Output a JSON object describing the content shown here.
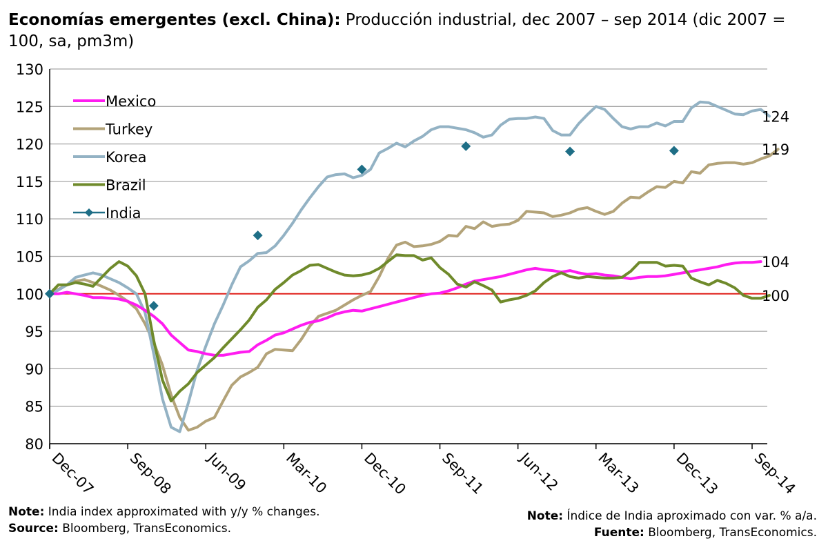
{
  "title": {
    "bold": "Economías emergentes (excl. China):",
    "rest": " Producción industrial, dec 2007 – sep 2014 (dic 2007 = 100, sa, pm3m)"
  },
  "notes": {
    "left_note_label": "Note:",
    "left_note_text": " India index approximated with y/y % changes.",
    "left_source_label": "Source:",
    "left_source_text": " Bloomberg, TransEconomics.",
    "right_note_label": "Note:",
    "right_note_text": " Índice de India aproximado con var. % a/a.",
    "right_source_label": "Fuente:",
    "right_source_text": " Bloomberg, TransEconomics."
  },
  "colors": {
    "Mexico": "#ff1cf0",
    "Turkey": "#b3a379",
    "Korea": "#93b2c4",
    "Brazil": "#6f8a2b",
    "India": "#1e6e86",
    "reference": "#e0201b",
    "grid": "#a6a6a6"
  },
  "chart_data": {
    "type": "line",
    "x_unit": "month",
    "x_start": "Dec-07",
    "x_end": "Sep-14",
    "xticks": [
      "Dec-07",
      "Sep-08",
      "Jun-09",
      "Mar-10",
      "Dec-10",
      "Sep-11",
      "Jun-12",
      "Mar-13",
      "Dec-13",
      "Sep-14"
    ],
    "yticks": [
      80,
      85,
      90,
      95,
      100,
      105,
      110,
      115,
      120,
      125,
      130
    ],
    "ylim": [
      80,
      130
    ],
    "grid": true,
    "legend_position": "top-left",
    "reference_line": 100,
    "series": [
      {
        "name": "Mexico",
        "end_label": "104",
        "values": [
          100,
          100,
          100.2,
          100,
          99.8,
          99.5,
          99.5,
          99.4,
          99.3,
          99,
          98.5,
          97.8,
          97,
          96,
          94.5,
          93.5,
          92.5,
          92.3,
          92,
          91.8,
          91.8,
          92,
          92.2,
          92.3,
          93.2,
          93.8,
          94.5,
          94.8,
          95.3,
          95.8,
          96.2,
          96.4,
          96.8,
          97.3,
          97.6,
          97.8,
          97.7,
          98,
          98.3,
          98.6,
          98.9,
          99.2,
          99.5,
          99.8,
          100,
          100.1,
          100.4,
          100.8,
          101.3,
          101.7,
          101.9,
          102.1,
          102.3,
          102.6,
          102.9,
          103.2,
          103.4,
          103.2,
          103.1,
          102.9,
          103.1,
          102.8,
          102.6,
          102.7,
          102.5,
          102.4,
          102.2,
          102,
          102.2,
          102.3,
          102.3,
          102.4,
          102.6,
          102.8,
          103,
          103.2,
          103.4,
          103.6,
          103.9,
          104.1,
          104.2,
          104.2,
          104.3
        ]
      },
      {
        "name": "Turkey",
        "end_label": "119",
        "values": [
          100,
          100.6,
          101.2,
          101.7,
          101.9,
          101.5,
          101,
          100.5,
          99.8,
          99,
          98,
          96,
          93.5,
          90.5,
          86.5,
          83.5,
          81.8,
          82.2,
          83,
          83.5,
          85.7,
          87.8,
          88.9,
          89.5,
          90.2,
          92,
          92.6,
          92.5,
          92.4,
          93.9,
          95.7,
          97,
          97.4,
          97.8,
          98.5,
          99.2,
          99.8,
          100.3,
          102.3,
          104.7,
          106.5,
          106.9,
          106.3,
          106.4,
          106.6,
          107,
          107.8,
          107.7,
          109,
          108.7,
          109.6,
          109,
          109.2,
          109.3,
          109.8,
          111,
          110.9,
          110.8,
          110.3,
          110.5,
          110.8,
          111.3,
          111.5,
          111,
          110.6,
          111,
          112.1,
          112.9,
          112.8,
          113.6,
          114.3,
          114.2,
          115,
          114.8,
          116.3,
          116.1,
          117.2,
          117.4,
          117.5,
          117.5,
          117.3,
          117.5,
          118,
          118.4,
          119.3
        ]
      },
      {
        "name": "Korea",
        "end_label": "124",
        "values": [
          100,
          100.5,
          101.2,
          102.2,
          102.5,
          102.8,
          102.5,
          102,
          101.5,
          100.8,
          100,
          97.5,
          92,
          86,
          82.2,
          81.6,
          85.5,
          89.8,
          93,
          96,
          98.5,
          101.2,
          103.6,
          104.4,
          105.4,
          105.5,
          106.4,
          107.8,
          109.4,
          111.2,
          112.8,
          114.3,
          115.6,
          115.9,
          116,
          115.5,
          115.8,
          116.6,
          118.8,
          119.4,
          120.1,
          119.6,
          120.4,
          121,
          121.9,
          122.3,
          122.3,
          122.1,
          121.9,
          121.5,
          120.9,
          121.2,
          122.5,
          123.3,
          123.4,
          123.4,
          123.6,
          123.4,
          121.8,
          121.2,
          121.2,
          122.7,
          123.9,
          125,
          124.6,
          123.4,
          122.3,
          122,
          122.3,
          122.3,
          122.8,
          122.4,
          123,
          123,
          124.8,
          125.6,
          125.5,
          125,
          124.5,
          124,
          123.9,
          124.4,
          124.6,
          123.7
        ]
      },
      {
        "name": "Brazil",
        "end_label": "100",
        "values": [
          100,
          101.2,
          101.2,
          101.5,
          101.3,
          101,
          102.2,
          103.4,
          104.3,
          103.7,
          102.4,
          100,
          93.8,
          88.5,
          85.7,
          87,
          88,
          89.5,
          90.5,
          91.5,
          92.8,
          94,
          95.2,
          96.5,
          98.2,
          99.2,
          100.6,
          101.5,
          102.5,
          103.1,
          103.8,
          103.9,
          103.4,
          102.9,
          102.5,
          102.4,
          102.5,
          102.8,
          103.4,
          104.3,
          105.2,
          105.1,
          105.1,
          104.5,
          104.8,
          103.5,
          102.6,
          101.3,
          100.9,
          101.6,
          101.1,
          100.5,
          98.9,
          99.2,
          99.4,
          99.8,
          100.4,
          101.5,
          102.3,
          102.8,
          102.3,
          102.1,
          102.3,
          102.2,
          102.1,
          102.1,
          102.2,
          103,
          104.2,
          104.2,
          104.2,
          103.7,
          103.8,
          103.7,
          102.1,
          101.6,
          101.2,
          101.8,
          101.4,
          100.8,
          99.8,
          99.4,
          99.4,
          99.8
        ]
      },
      {
        "name": "India",
        "x": [
          "Dec-07",
          "Dec-08",
          "Dec-09",
          "Dec-10",
          "Dec-11",
          "Dec-12",
          "Dec-13"
        ],
        "values": [
          100,
          98.4,
          107.8,
          116.6,
          119.7,
          119,
          119.1
        ]
      }
    ]
  }
}
